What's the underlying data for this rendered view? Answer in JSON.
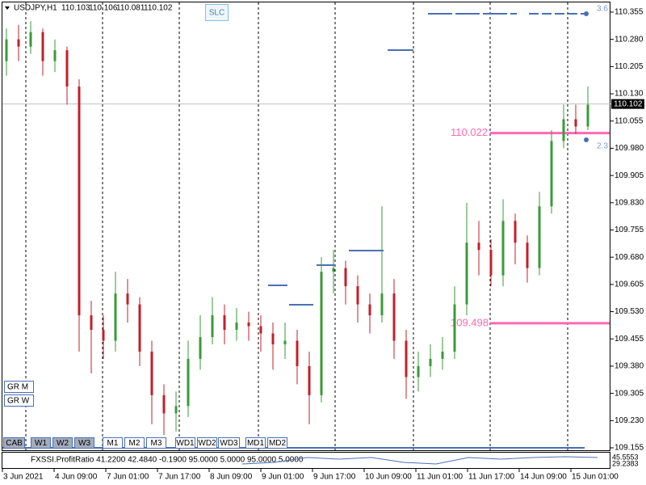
{
  "chart_data": {
    "type": "candlestick",
    "symbol": "USDJPY,H1",
    "ohlc": [
      110.103,
      110.106,
      110.081,
      110.102
    ],
    "last_price": 110.102,
    "ylim": [
      109.155,
      110.355
    ],
    "yticks": [
      110.355,
      {
        "value": 110.28,
        "label": "110.280"
      },
      110.205,
      {
        "value": 110.13,
        "label": "110.130"
      },
      110.055,
      {
        "value": 109.98,
        "label": "109.980"
      },
      109.905,
      {
        "value": 109.83,
        "label": "109.830"
      },
      109.755,
      {
        "value": 109.68,
        "label": "109.680"
      },
      109.605,
      {
        "value": 109.53,
        "label": "109.530"
      },
      109.455,
      {
        "value": 109.38,
        "label": "109.380"
      },
      109.305,
      {
        "value": 109.23,
        "label": "109.230"
      },
      109.155
    ],
    "time_labels": [
      "3 Jun 2021",
      "4 Jun 09:00",
      "7 Jun 01:00",
      "7 Jun 17:00",
      "8 Jun 09:00",
      "9 Jun 01:00",
      "9 Jun 17:00",
      "10 Jun 09:00",
      "11 Jun 01:00",
      "11 Jun 17:00",
      "14 Jun 09:00",
      "15 Jun 01:00"
    ],
    "levels": [
      110.022,
      109.498
    ],
    "level_notes": [
      "3.6",
      "2.3"
    ],
    "bars": [
      [
        110.22,
        110.31,
        110.18,
        110.28
      ],
      [
        110.28,
        110.32,
        110.22,
        110.26
      ],
      [
        110.26,
        110.33,
        110.24,
        110.3
      ],
      [
        110.3,
        110.31,
        110.18,
        110.22
      ],
      [
        110.22,
        110.28,
        110.19,
        110.25
      ],
      [
        110.25,
        110.26,
        110.1,
        110.15
      ],
      [
        110.15,
        110.17,
        109.42,
        109.52
      ],
      [
        109.52,
        109.56,
        109.36,
        109.48
      ],
      [
        109.48,
        109.52,
        109.4,
        109.45
      ],
      [
        109.45,
        109.64,
        109.42,
        109.58
      ],
      [
        109.58,
        109.62,
        109.5,
        109.55
      ],
      [
        109.55,
        109.57,
        109.38,
        109.42
      ],
      [
        109.42,
        109.45,
        109.22,
        109.3
      ],
      [
        109.3,
        109.33,
        109.19,
        109.25
      ],
      [
        109.25,
        109.31,
        109.2,
        109.27
      ],
      [
        109.27,
        109.45,
        109.24,
        109.4
      ],
      [
        109.4,
        109.52,
        109.37,
        109.46
      ],
      [
        109.46,
        109.57,
        109.44,
        109.52
      ],
      [
        109.52,
        109.55,
        109.44,
        109.48
      ],
      [
        109.48,
        109.54,
        109.45,
        109.5
      ],
      [
        109.5,
        109.53,
        109.45,
        109.49
      ],
      [
        109.49,
        109.52,
        109.42,
        109.47
      ],
      [
        109.47,
        109.5,
        109.37,
        109.44
      ],
      [
        109.44,
        109.5,
        109.4,
        109.45
      ],
      [
        109.45,
        109.48,
        109.33,
        109.38
      ],
      [
        109.38,
        109.42,
        109.22,
        109.3
      ],
      [
        109.3,
        109.68,
        109.28,
        109.64
      ],
      [
        109.64,
        109.7,
        109.58,
        109.65
      ],
      [
        109.65,
        109.67,
        109.55,
        109.6
      ],
      [
        109.6,
        109.63,
        109.5,
        109.55
      ],
      [
        109.55,
        109.58,
        109.47,
        109.52
      ],
      [
        109.52,
        109.82,
        109.5,
        109.58
      ],
      [
        109.58,
        109.62,
        109.4,
        109.45
      ],
      [
        109.45,
        109.48,
        109.29,
        109.35
      ],
      [
        109.35,
        109.42,
        109.31,
        109.38
      ],
      [
        109.38,
        109.44,
        109.35,
        109.4
      ],
      [
        109.4,
        109.46,
        109.37,
        109.42
      ],
      [
        109.42,
        109.6,
        109.4,
        109.55
      ],
      [
        109.55,
        109.83,
        109.52,
        109.72
      ],
      [
        109.72,
        109.78,
        109.63,
        109.7
      ],
      [
        109.7,
        109.73,
        109.6,
        109.63
      ],
      [
        109.63,
        109.84,
        109.6,
        109.78
      ],
      [
        109.78,
        109.8,
        109.66,
        109.72
      ],
      [
        109.72,
        109.74,
        109.61,
        109.65
      ],
      [
        109.65,
        109.86,
        109.63,
        109.82
      ],
      [
        109.82,
        110.03,
        109.8,
        110.0
      ],
      [
        110.0,
        110.1,
        109.98,
        110.06
      ],
      [
        110.06,
        110.1,
        110.02,
        110.04
      ],
      [
        110.04,
        110.15,
        110.03,
        110.1
      ]
    ],
    "up_color": "#3a9a3a",
    "down_color": "#c0202a",
    "level_color": "#ff69b4",
    "indicator": {
      "label": "FXSSI.ProfitRatio 41.2200 42.4840 -0.1900 95.0000 5.0000 95.0000 5.0000",
      "scale_labels": [
        "45.5553",
        "29.2383"
      ]
    }
  },
  "toolbar": {
    "slc_button": "SLC",
    "side_buttons": [
      "GR M",
      "GR W"
    ],
    "bottom_buttons": [
      "CAB",
      "W1",
      "W2",
      "W3",
      "M1",
      "M2",
      "M3",
      "WD1",
      "WD2",
      "WD3",
      "MD1",
      "MD2"
    ]
  }
}
